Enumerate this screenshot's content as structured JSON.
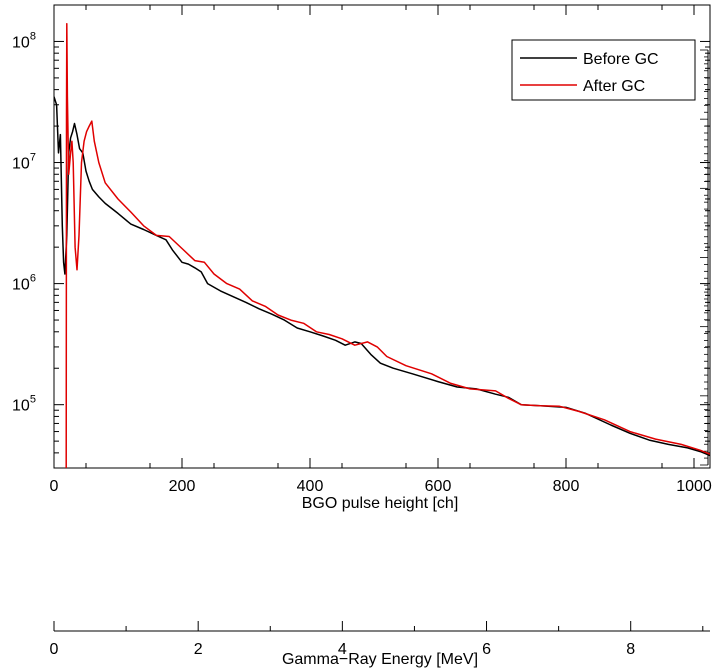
{
  "chart_data": {
    "type": "line",
    "xlabel": "BGO pulse height [ch]",
    "xlabel2": "Gamma−Ray Energy [MeV]",
    "xlim": [
      0,
      1025
    ],
    "x2lim": [
      0,
      9.1
    ],
    "ylim": [
      30000,
      200000000
    ],
    "yscale": "log",
    "xticks": [
      "0",
      "200",
      "400",
      "600",
      "800",
      "1000"
    ],
    "xtick_values": [
      0,
      200,
      400,
      600,
      800,
      1000
    ],
    "x2ticks": [
      "0",
      "2",
      "4",
      "6",
      "8"
    ],
    "x2tick_values": [
      0,
      2,
      4,
      6,
      8
    ],
    "yticks": [
      {
        "base": "10",
        "exp": "5",
        "value": 100000
      },
      {
        "base": "10",
        "exp": "6",
        "value": 1000000
      },
      {
        "base": "10",
        "exp": "7",
        "value": 10000000
      },
      {
        "base": "10",
        "exp": "8",
        "value": 100000000
      }
    ],
    "legend_position": "top-right",
    "series": [
      {
        "name": "Before GC",
        "color": "#000000",
        "points": [
          [
            0,
            35000000
          ],
          [
            4,
            30000000
          ],
          [
            7,
            12000000
          ],
          [
            10,
            17000000
          ],
          [
            13,
            3000000
          ],
          [
            15,
            1500000
          ],
          [
            17,
            1200000
          ],
          [
            20,
            2500000
          ],
          [
            23,
            12000000
          ],
          [
            26,
            16000000
          ],
          [
            29,
            18000000
          ],
          [
            32,
            21000000
          ],
          [
            36,
            17000000
          ],
          [
            40,
            13000000
          ],
          [
            45,
            12000000
          ],
          [
            50,
            8500000
          ],
          [
            55,
            7000000
          ],
          [
            60,
            6000000
          ],
          [
            70,
            5200000
          ],
          [
            80,
            4600000
          ],
          [
            100,
            3800000
          ],
          [
            120,
            3100000
          ],
          [
            140,
            2800000
          ],
          [
            160,
            2500000
          ],
          [
            175,
            2300000
          ],
          [
            185,
            1900000
          ],
          [
            200,
            1500000
          ],
          [
            210,
            1450000
          ],
          [
            220,
            1350000
          ],
          [
            230,
            1250000
          ],
          [
            240,
            1000000
          ],
          [
            260,
            870000
          ],
          [
            280,
            780000
          ],
          [
            300,
            700000
          ],
          [
            320,
            620000
          ],
          [
            340,
            560000
          ],
          [
            360,
            500000
          ],
          [
            380,
            430000
          ],
          [
            400,
            400000
          ],
          [
            420,
            370000
          ],
          [
            440,
            340000
          ],
          [
            455,
            310000
          ],
          [
            470,
            330000
          ],
          [
            480,
            320000
          ],
          [
            495,
            260000
          ],
          [
            510,
            220000
          ],
          [
            530,
            200000
          ],
          [
            560,
            180000
          ],
          [
            600,
            155000
          ],
          [
            630,
            140000
          ],
          [
            660,
            135000
          ],
          [
            690,
            122000
          ],
          [
            710,
            115000
          ],
          [
            730,
            100000
          ],
          [
            760,
            98000
          ],
          [
            800,
            95000
          ],
          [
            830,
            85000
          ],
          [
            870,
            68000
          ],
          [
            900,
            58000
          ],
          [
            930,
            51000
          ],
          [
            960,
            47000
          ],
          [
            990,
            44000
          ],
          [
            1010,
            41000
          ],
          [
            1025,
            38000
          ]
        ]
      },
      {
        "name": "After GC",
        "color": "#e00000",
        "points": [
          [
            19,
            30000
          ],
          [
            19.5,
            25000000
          ],
          [
            20,
            140000000
          ],
          [
            21,
            35000000
          ],
          [
            23,
            8000000
          ],
          [
            26,
            12000000
          ],
          [
            28,
            15000000
          ],
          [
            30,
            10000000
          ],
          [
            33,
            2000000
          ],
          [
            36,
            1300000
          ],
          [
            39,
            2500000
          ],
          [
            43,
            10000000
          ],
          [
            47,
            15000000
          ],
          [
            51,
            18000000
          ],
          [
            55,
            20000000
          ],
          [
            59,
            22000000
          ],
          [
            63,
            15000000
          ],
          [
            70,
            10000000
          ],
          [
            80,
            6800000
          ],
          [
            100,
            5000000
          ],
          [
            120,
            3900000
          ],
          [
            140,
            3000000
          ],
          [
            160,
            2500000
          ],
          [
            180,
            2450000
          ],
          [
            200,
            1950000
          ],
          [
            220,
            1550000
          ],
          [
            235,
            1500000
          ],
          [
            250,
            1200000
          ],
          [
            270,
            1000000
          ],
          [
            290,
            900000
          ],
          [
            310,
            720000
          ],
          [
            330,
            650000
          ],
          [
            350,
            550000
          ],
          [
            370,
            500000
          ],
          [
            390,
            470000
          ],
          [
            410,
            400000
          ],
          [
            430,
            380000
          ],
          [
            450,
            350000
          ],
          [
            470,
            310000
          ],
          [
            490,
            330000
          ],
          [
            505,
            300000
          ],
          [
            520,
            250000
          ],
          [
            550,
            210000
          ],
          [
            590,
            180000
          ],
          [
            620,
            150000
          ],
          [
            650,
            135000
          ],
          [
            690,
            130000
          ],
          [
            710,
            113000
          ],
          [
            730,
            100000
          ],
          [
            760,
            98000
          ],
          [
            790,
            97000
          ],
          [
            820,
            88000
          ],
          [
            860,
            75000
          ],
          [
            900,
            60000
          ],
          [
            940,
            52000
          ],
          [
            980,
            47000
          ],
          [
            1010,
            42000
          ],
          [
            1025,
            39000
          ]
        ]
      }
    ]
  }
}
